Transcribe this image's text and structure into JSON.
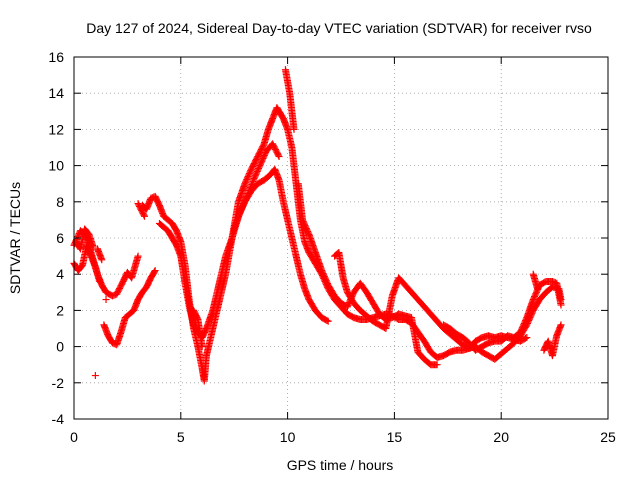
{
  "chart_data": {
    "type": "scatter",
    "title": "Day 127 of 2024, Sidereal Day-to-day VTEC variation (SDTVAR) for receiver rvso",
    "xlabel": "GPS time / hours",
    "ylabel": "SDTVAR / TECUs",
    "xlim": [
      0,
      25
    ],
    "ylim": [
      -4,
      16
    ],
    "x_ticks": [
      0,
      5,
      10,
      15,
      20,
      25
    ],
    "y_ticks": [
      -4,
      -2,
      0,
      2,
      4,
      6,
      8,
      10,
      12,
      14,
      16
    ],
    "grid": true,
    "marker": "+",
    "series_color": "#ff0000",
    "series": [
      {
        "name": "track-a",
        "points": [
          [
            0.0,
            5.6
          ],
          [
            0.3,
            6.4
          ],
          [
            0.6,
            6.0
          ],
          [
            0.9,
            4.8
          ],
          [
            1.1,
            4.0
          ],
          [
            1.3,
            3.4
          ],
          [
            1.5,
            3.0
          ],
          [
            1.8,
            2.8
          ],
          [
            2.0,
            2.9
          ],
          [
            2.3,
            3.6
          ],
          [
            2.5,
            4.1
          ],
          [
            2.7,
            3.8
          ],
          [
            3.0,
            5.0
          ],
          [
            3.2,
            7.8
          ],
          [
            3.4,
            7.6
          ],
          [
            3.6,
            8.2
          ],
          [
            3.8,
            8.3
          ],
          [
            4.0,
            7.8
          ],
          [
            4.2,
            7.2
          ],
          [
            4.4,
            7.0
          ],
          [
            4.6,
            6.8
          ],
          [
            4.8,
            6.4
          ],
          [
            5.0,
            5.8
          ],
          [
            5.2,
            4.5
          ],
          [
            5.4,
            2.5
          ],
          [
            5.6,
            1.0
          ],
          [
            5.8,
            0.0
          ],
          [
            6.0,
            -1.2
          ],
          [
            6.1,
            -1.9
          ],
          [
            6.2,
            -0.5
          ],
          [
            6.5,
            1.0
          ],
          [
            6.8,
            2.5
          ],
          [
            7.1,
            4.0
          ],
          [
            7.4,
            6.0
          ],
          [
            7.7,
            8.0
          ],
          [
            8.0,
            9.0
          ],
          [
            8.3,
            9.8
          ],
          [
            8.6,
            10.5
          ],
          [
            8.9,
            11.2
          ],
          [
            9.1,
            12.0
          ],
          [
            9.3,
            12.6
          ],
          [
            9.5,
            13.2
          ],
          [
            9.6,
            13.0
          ],
          [
            9.8,
            12.6
          ],
          [
            10.0,
            12.0
          ],
          [
            10.2,
            11.0
          ],
          [
            10.4,
            9.0
          ],
          [
            10.6,
            7.0
          ],
          [
            10.8,
            5.8
          ],
          [
            11.0,
            5.2
          ],
          [
            11.3,
            4.6
          ],
          [
            11.6,
            4.0
          ],
          [
            11.9,
            3.2
          ],
          [
            12.2,
            2.6
          ],
          [
            12.5,
            2.2
          ],
          [
            12.8,
            1.8
          ],
          [
            13.1,
            1.6
          ],
          [
            13.4,
            1.5
          ],
          [
            13.7,
            1.5
          ],
          [
            14.0,
            1.6
          ],
          [
            14.3,
            1.7
          ],
          [
            14.6,
            1.8
          ],
          [
            14.9,
            1.7
          ],
          [
            15.2,
            1.5
          ],
          [
            15.5,
            1.5
          ],
          [
            15.8,
            1.3
          ],
          [
            16.1,
            0.8
          ],
          [
            16.4,
            0.3
          ],
          [
            16.7,
            -0.3
          ],
          [
            17.0,
            -0.6
          ],
          [
            17.3,
            -0.5
          ],
          [
            17.6,
            -0.3
          ],
          [
            17.9,
            -0.2
          ],
          [
            18.2,
            -0.2
          ],
          [
            18.5,
            -0.1
          ],
          [
            18.8,
            0.0
          ],
          [
            19.1,
            -0.3
          ],
          [
            19.4,
            -0.5
          ],
          [
            19.7,
            -0.7
          ],
          [
            20.0,
            -0.4
          ],
          [
            20.3,
            -0.1
          ],
          [
            20.6,
            0.2
          ],
          [
            20.9,
            0.6
          ],
          [
            21.2,
            1.2
          ],
          [
            21.5,
            2.0
          ],
          [
            21.8,
            2.6
          ],
          [
            22.1,
            3.0
          ],
          [
            22.4,
            3.3
          ],
          [
            22.7,
            3.2
          ],
          [
            22.8,
            2.6
          ]
        ]
      },
      {
        "name": "track-b",
        "points": [
          [
            0.0,
            4.6
          ],
          [
            0.2,
            4.2
          ],
          [
            0.4,
            4.5
          ],
          [
            0.6,
            5.6
          ],
          [
            0.8,
            5.0
          ],
          [
            1.0,
            4.4
          ],
          [
            1.2,
            3.6
          ],
          [
            1.4,
            1.2
          ],
          [
            1.6,
            0.6
          ],
          [
            1.8,
            0.2
          ],
          [
            2.0,
            0.1
          ],
          [
            2.2,
            0.8
          ],
          [
            2.4,
            1.6
          ],
          [
            2.6,
            1.8
          ],
          [
            2.8,
            2.0
          ],
          [
            3.0,
            2.6
          ],
          [
            3.2,
            3.0
          ],
          [
            3.4,
            3.3
          ],
          [
            3.6,
            3.8
          ],
          [
            3.8,
            4.2
          ],
          [
            4.0,
            6.8
          ],
          [
            4.2,
            6.6
          ],
          [
            4.4,
            6.4
          ],
          [
            4.6,
            6.0
          ],
          [
            4.8,
            5.6
          ],
          [
            5.0,
            5.0
          ],
          [
            5.2,
            3.5
          ],
          [
            5.4,
            2.2
          ],
          [
            5.6,
            1.2
          ],
          [
            5.8,
            0.8
          ],
          [
            6.0,
            0.5
          ],
          [
            6.2,
            1.0
          ],
          [
            6.5,
            2.0
          ],
          [
            6.8,
            3.5
          ],
          [
            7.1,
            5.0
          ],
          [
            7.4,
            6.0
          ],
          [
            7.7,
            7.2
          ],
          [
            8.0,
            8.0
          ],
          [
            8.3,
            8.6
          ],
          [
            8.6,
            9.0
          ],
          [
            8.9,
            9.2
          ],
          [
            9.2,
            9.5
          ],
          [
            9.4,
            9.8
          ],
          [
            9.6,
            9.2
          ],
          [
            9.8,
            8.0
          ],
          [
            10.0,
            7.0
          ],
          [
            10.2,
            6.0
          ],
          [
            10.4,
            5.0
          ],
          [
            10.6,
            4.0
          ],
          [
            10.8,
            3.2
          ],
          [
            11.0,
            2.6
          ],
          [
            11.3,
            2.0
          ],
          [
            11.6,
            1.6
          ],
          [
            11.9,
            1.4
          ],
          [
            12.2,
            5.0
          ],
          [
            12.4,
            5.2
          ],
          [
            12.6,
            3.8
          ],
          [
            12.8,
            3.0
          ],
          [
            13.1,
            2.4
          ],
          [
            13.4,
            2.0
          ],
          [
            13.7,
            1.7
          ],
          [
            14.0,
            1.4
          ],
          [
            14.3,
            1.2
          ],
          [
            14.6,
            1.0
          ],
          [
            14.9,
            2.8
          ],
          [
            15.2,
            3.8
          ],
          [
            15.5,
            3.4
          ],
          [
            15.8,
            3.0
          ],
          [
            16.1,
            2.6
          ],
          [
            16.4,
            2.2
          ],
          [
            16.7,
            1.8
          ],
          [
            17.0,
            1.4
          ],
          [
            17.3,
            1.0
          ],
          [
            17.6,
            0.7
          ],
          [
            17.9,
            0.4
          ],
          [
            18.2,
            0.1
          ],
          [
            18.5,
            -0.1
          ],
          [
            18.8,
            0.3
          ],
          [
            19.1,
            0.5
          ],
          [
            19.4,
            0.6
          ],
          [
            19.7,
            0.5
          ],
          [
            20.0,
            0.6
          ],
          [
            20.3,
            0.5
          ],
          [
            20.6,
            0.4
          ],
          [
            20.9,
            0.3
          ],
          [
            21.2,
            0.5
          ],
          [
            21.5,
            4.0
          ],
          [
            21.7,
            3.2
          ],
          [
            22.0,
            -0.2
          ],
          [
            22.2,
            0.3
          ],
          [
            22.4,
            -0.5
          ],
          [
            22.6,
            0.6
          ],
          [
            22.8,
            1.2
          ]
        ]
      },
      {
        "name": "track-c",
        "points": [
          [
            0.1,
            5.8
          ],
          [
            0.3,
            5.4
          ],
          [
            0.5,
            6.5
          ],
          [
            0.7,
            6.2
          ],
          [
            0.9,
            5.5
          ],
          [
            1.0,
            -1.6
          ],
          [
            1.1,
            5.4
          ],
          [
            1.3,
            4.8
          ],
          [
            1.5,
            2.6
          ],
          [
            3.0,
            7.9
          ],
          [
            3.3,
            7.2
          ],
          [
            5.6,
            2.0
          ],
          [
            5.8,
            1.5
          ],
          [
            6.0,
            0.0
          ],
          [
            7.5,
            6.5
          ],
          [
            7.8,
            7.5
          ],
          [
            8.1,
            8.3
          ],
          [
            8.4,
            9.2
          ],
          [
            8.7,
            10.0
          ],
          [
            9.0,
            10.8
          ],
          [
            9.3,
            11.2
          ],
          [
            9.6,
            10.5
          ],
          [
            9.9,
            15.3
          ],
          [
            10.1,
            14.0
          ],
          [
            10.3,
            12.0
          ],
          [
            10.5,
            9.0
          ],
          [
            10.7,
            7.0
          ],
          [
            11.0,
            6.2
          ],
          [
            11.3,
            5.2
          ],
          [
            11.6,
            4.2
          ],
          [
            11.9,
            3.4
          ],
          [
            12.2,
            2.8
          ],
          [
            12.5,
            2.4
          ],
          [
            12.8,
            2.2
          ],
          [
            13.1,
            3.0
          ],
          [
            13.4,
            3.5
          ],
          [
            13.7,
            3.0
          ],
          [
            14.0,
            2.4
          ],
          [
            14.3,
            1.8
          ],
          [
            14.6,
            1.5
          ],
          [
            14.9,
            1.6
          ],
          [
            15.2,
            1.8
          ],
          [
            15.5,
            1.7
          ],
          [
            15.8,
            1.6
          ],
          [
            16.1,
            -0.3
          ],
          [
            16.4,
            -0.7
          ],
          [
            16.7,
            -1.0
          ],
          [
            17.0,
            -1.0
          ],
          [
            17.3,
            1.2
          ],
          [
            17.6,
            1.0
          ],
          [
            17.9,
            0.7
          ],
          [
            18.2,
            0.5
          ],
          [
            18.5,
            0.2
          ],
          [
            18.8,
            -0.2
          ],
          [
            19.1,
            0.0
          ],
          [
            19.4,
            0.2
          ],
          [
            19.7,
            0.3
          ],
          [
            20.0,
            0.3
          ],
          [
            20.3,
            0.6
          ],
          [
            20.6,
            0.5
          ],
          [
            20.9,
            0.8
          ],
          [
            21.2,
            1.6
          ],
          [
            21.5,
            2.6
          ],
          [
            21.8,
            3.4
          ],
          [
            22.1,
            3.6
          ],
          [
            22.4,
            3.6
          ],
          [
            22.6,
            3.5
          ],
          [
            22.8,
            2.3
          ]
        ]
      }
    ]
  }
}
